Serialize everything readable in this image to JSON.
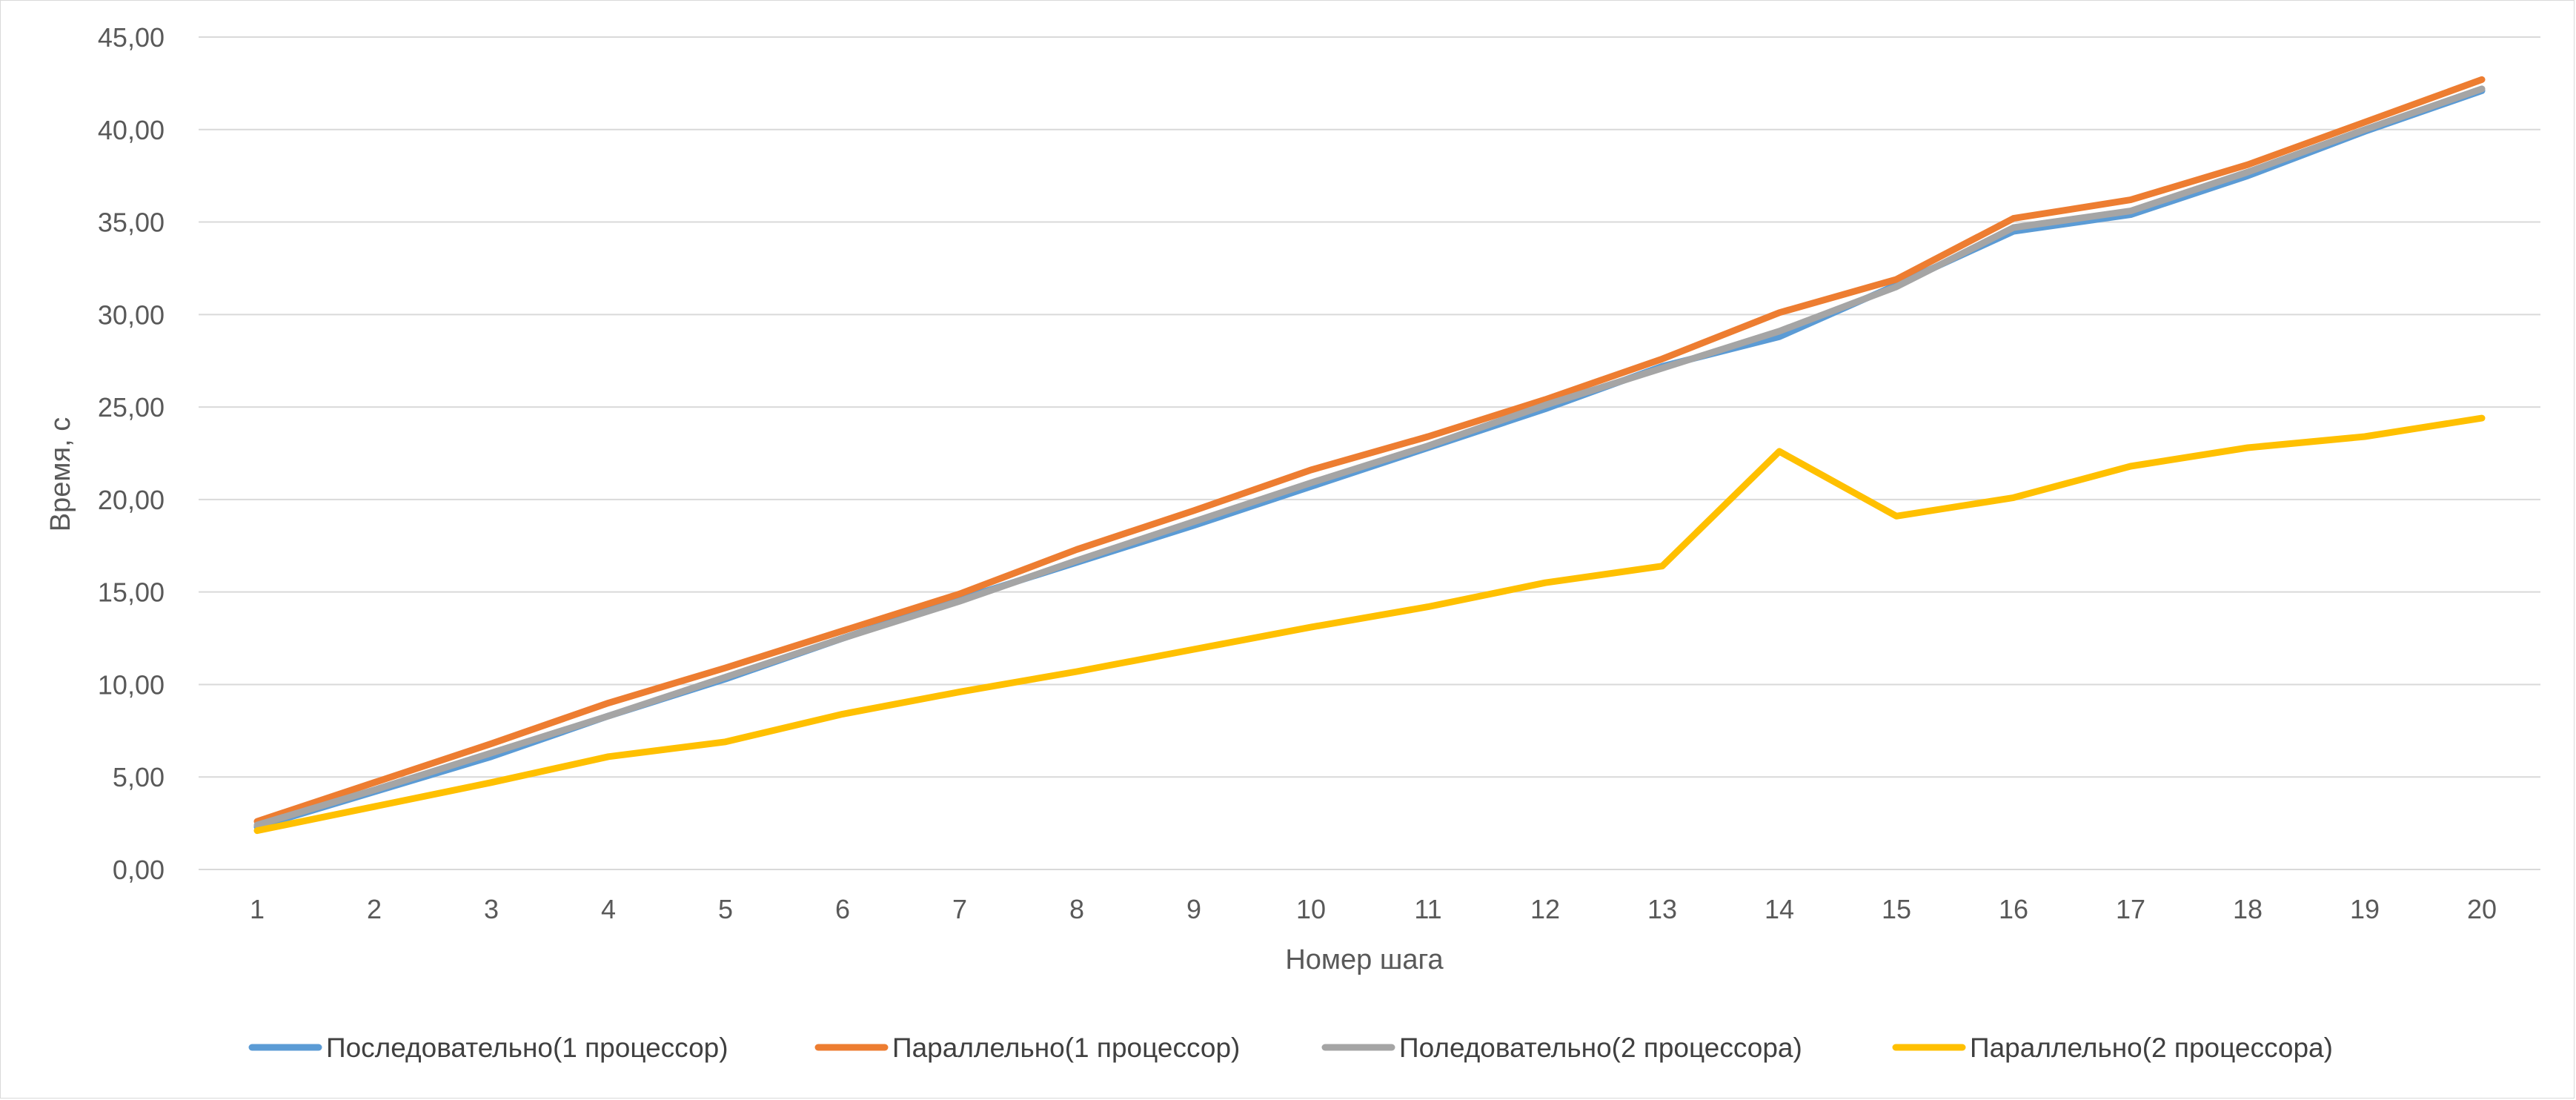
{
  "chart_data": {
    "type": "line",
    "title": "",
    "xlabel": "Номер шага",
    "ylabel": "Время, с",
    "categories": [
      "1",
      "2",
      "3",
      "4",
      "5",
      "6",
      "7",
      "8",
      "9",
      "10",
      "11",
      "12",
      "13",
      "14",
      "15",
      "16",
      "17",
      "18",
      "19",
      "20"
    ],
    "ylim": [
      0,
      45
    ],
    "yticks": [
      "0,00",
      "5,00",
      "10,00",
      "15,00",
      "20,00",
      "25,00",
      "30,00",
      "35,00",
      "40,00",
      "45,00"
    ],
    "ytick_values": [
      0,
      5,
      10,
      15,
      20,
      25,
      30,
      35,
      40,
      45
    ],
    "grid": true,
    "legend_position": "bottom",
    "series": [
      {
        "name": "Последовательно(1 процессор)",
        "color": "#5b9bd5",
        "values": [
          2.3,
          4.2,
          6.1,
          8.3,
          10.3,
          12.5,
          14.6,
          16.6,
          18.6,
          20.7,
          22.8,
          24.9,
          27.2,
          28.8,
          31.6,
          34.5,
          35.4,
          37.5,
          39.9,
          42.1
        ]
      },
      {
        "name": "Параллельно(1 процессор)",
        "color": "#ed7d31",
        "values": [
          2.6,
          4.7,
          6.8,
          9.0,
          10.9,
          12.9,
          14.9,
          17.3,
          19.4,
          21.6,
          23.4,
          25.4,
          27.6,
          30.1,
          31.9,
          35.2,
          36.2,
          38.1,
          40.4,
          42.7
        ]
      },
      {
        "name": "Поледовательно(2 процессора)",
        "color": "#a5a5a5",
        "values": [
          2.4,
          4.3,
          6.3,
          8.3,
          10.4,
          12.5,
          14.5,
          16.7,
          18.8,
          20.9,
          22.9,
          25.1,
          27.1,
          29.1,
          31.5,
          34.7,
          35.6,
          37.7,
          40.0,
          42.2
        ]
      },
      {
        "name": "Параллельно(2 процессора)",
        "color": "#ffc000",
        "values": [
          2.1,
          3.4,
          4.7,
          6.1,
          6.9,
          8.4,
          9.6,
          10.7,
          11.9,
          13.1,
          14.2,
          15.5,
          16.4,
          22.6,
          19.1,
          20.1,
          21.8,
          22.8,
          23.4,
          24.4
        ]
      }
    ]
  }
}
